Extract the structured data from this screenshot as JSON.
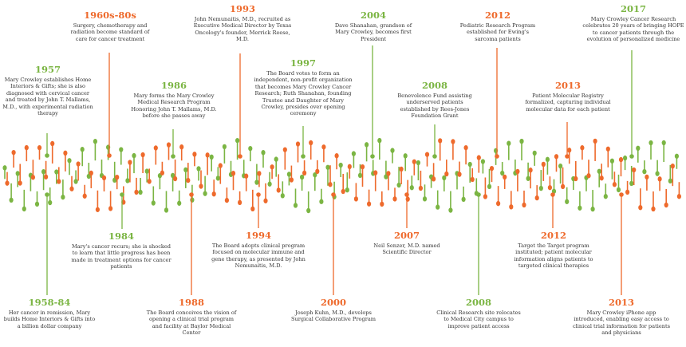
{
  "colors": {
    "green": "#7bb543",
    "orange": "#ee6a2c",
    "text": "#333333"
  },
  "events": [
    {
      "id": "e1957",
      "year": "1957",
      "color": "green",
      "pos": "top",
      "text": "Mary Crowley establishes Home Interiors & Gifts; she is also diagnosed with cervical cancer and treated by John T. Mallams, M.D., with experimental radiation therapy"
    },
    {
      "id": "e1960s",
      "year": "1960s-80s",
      "color": "orange",
      "pos": "top",
      "text": "Surgery, chemotherapy and radiation become standard of care for cancer treatment"
    },
    {
      "id": "e1986",
      "year": "1986",
      "color": "green",
      "pos": "top",
      "text": "Mary forms the Mary Crowley Medical Research Program Honoring John T. Mallams, M.D. before she passes away"
    },
    {
      "id": "e1993",
      "year": "1993",
      "color": "orange",
      "pos": "top",
      "text": "John Nemunaitis, M.D., recruited as Executive Medical Director by Texas Oncology's founder, Merrick Reese, M.D."
    },
    {
      "id": "e1997",
      "year": "1997",
      "color": "green",
      "pos": "top",
      "text": "The Board votes to form an independent, non-profit organization that becomes Mary Crowley Cancer Research; Ruth Shanahan, founding Trustee and Daughter of Mary Crowley, presides over opening ceremony"
    },
    {
      "id": "e2004",
      "year": "2004",
      "color": "green",
      "pos": "top",
      "text": "Dave Shanahan, grandson of Mary Crowley, becomes first President"
    },
    {
      "id": "e2008a",
      "year": "2008",
      "color": "green",
      "pos": "top",
      "text": "Benevolence Fund assisting underserved patients established by Rees-Jones Foundation Grant"
    },
    {
      "id": "e2012a",
      "year": "2012",
      "color": "orange",
      "pos": "top",
      "text": "Pediatric Research Program established for Ewing's sarcoma patients"
    },
    {
      "id": "e2013a",
      "year": "2013",
      "color": "orange",
      "pos": "top",
      "text": "Patient Molecular Registry formalized, capturing individual molecular data for each patient"
    },
    {
      "id": "e2017",
      "year": "2017",
      "color": "green",
      "pos": "top",
      "text": "Mary Crowley Cancer Research celebrates 20 years of bringing HOPE to cancer patients through the evolution of personalized medicine"
    },
    {
      "id": "e1984",
      "year": "1984",
      "color": "green",
      "pos": "bottom",
      "text": "Mary's cancer recurs; she is shocked to learn that little progress has been made in treatment options for cancer patients"
    },
    {
      "id": "e1958",
      "year": "1958-84",
      "color": "green",
      "pos": "bottom",
      "text": "Her cancer in remission, Mary builds Home Interiors & Gifts into a billion dollar company"
    },
    {
      "id": "e1988",
      "year": "1988",
      "color": "orange",
      "pos": "bottom",
      "text": "The Board conceives the vision of opening a clinical trial program and facility at Baylor Medical Center"
    },
    {
      "id": "e1994",
      "year": "1994",
      "color": "orange",
      "pos": "bottom",
      "text": "The Board adopts clinical program focused on molecular immune and gene therapy, as presented by John Nemunaitis, M.D."
    },
    {
      "id": "e2000",
      "year": "2000",
      "color": "orange",
      "pos": "bottom",
      "text": "Joseph Kuhn, M.D., develops Surgical Collaborative Program"
    },
    {
      "id": "e2007",
      "year": "2007",
      "color": "orange",
      "pos": "bottom",
      "text": "Neil Senzer, M.D. named Scientific Director"
    },
    {
      "id": "e2008b",
      "year": "2008",
      "color": "green",
      "pos": "bottom",
      "text": "Clinical Research site relocates to Medical City campus to improve patient access"
    },
    {
      "id": "e2012b",
      "year": "2012",
      "color": "orange",
      "pos": "bottom",
      "text": "Target the Target program instituted; patient molecular information aligns patients to targeted clinical therapies"
    },
    {
      "id": "e2013b",
      "year": "2013",
      "color": "orange",
      "pos": "bottom",
      "text": "Mary Crowley iPhone app introduced, enabling easy access to clinical trial information for patients and physicians"
    }
  ]
}
